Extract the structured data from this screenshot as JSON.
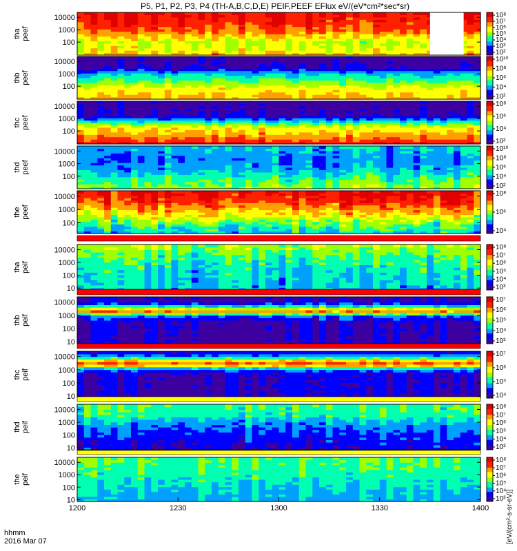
{
  "chart_data": {
    "type": "heatmap",
    "title": "P5, P1, P2, P3, P4 (TH-A,B,C,D,E) PEIF,PEEF EFlux eV/(eV*cm²*sec*sr)",
    "x_axis": {
      "label": "hhmm",
      "date": "2016 Mar 07",
      "ticks": [
        "1200",
        "1230",
        "1300",
        "1330",
        "1400"
      ],
      "range": [
        "1200",
        "1400"
      ]
    },
    "colorbar_units": "[eV/(cm²-s-sr-eV)]",
    "colormap": [
      "#3c00a0",
      "#0000ff",
      "#00a0ff",
      "#00ffb0",
      "#a0ff00",
      "#ffff00",
      "#ffa000",
      "#ff2000",
      "#e00000"
    ],
    "panels": [
      {
        "label1": "tha",
        "label2": "peef",
        "yticks": [
          "10000",
          "1000",
          "100"
        ],
        "ylog_range": [
          0.95,
          4.4
        ],
        "cbar_ticks": [
          "10⁸",
          "10⁷",
          "10⁶",
          "10⁵",
          "10⁴",
          "10³",
          "10²"
        ],
        "cbar_log_range": [
          1.8,
          8.3
        ],
        "profile": [
          [
            0.95,
            0.7
          ],
          [
            1.4,
            0.6
          ],
          [
            2.0,
            0.55
          ],
          [
            3.0,
            0.8
          ],
          [
            4.4,
            0.92
          ]
        ],
        "variation": 0.08,
        "gaps": [
          [
            1345,
            1355
          ]
        ]
      },
      {
        "label1": "thb",
        "label2": "peef",
        "yticks": [
          "10000",
          "1000",
          "100"
        ],
        "ylog_range": [
          0.95,
          4.4
        ],
        "cbar_ticks": [
          "10¹⁰",
          "10⁸",
          "10⁶",
          "10⁴",
          "10²"
        ],
        "cbar_log_range": [
          1.5,
          10.3
        ],
        "profile": [
          [
            0.95,
            0.7
          ],
          [
            1.8,
            0.6
          ],
          [
            2.4,
            0.45
          ],
          [
            3.0,
            0.32
          ],
          [
            3.5,
            0.1
          ],
          [
            4.4,
            0.05
          ]
        ],
        "variation": 0.05,
        "gaps": []
      },
      {
        "label1": "thc",
        "label2": "peef",
        "yticks": [
          "10000",
          "1000",
          "100"
        ],
        "ylog_range": [
          0.95,
          4.4
        ],
        "cbar_ticks": [
          "10⁸",
          "10⁶",
          "10⁴",
          "10²"
        ],
        "cbar_log_range": [
          1.5,
          8.5
        ],
        "profile": [
          [
            0.95,
            0.9
          ],
          [
            1.5,
            0.75
          ],
          [
            2.3,
            0.6
          ],
          [
            2.8,
            0.35
          ],
          [
            3.2,
            0.1
          ],
          [
            4.4,
            0.05
          ]
        ],
        "variation": 0.06,
        "gaps": []
      },
      {
        "label1": "thd",
        "label2": "peef",
        "yticks": [
          "10000",
          "1000",
          "100"
        ],
        "ylog_range": [
          1.0,
          4.4
        ],
        "cbar_ticks": [
          "10¹⁰",
          "10⁸",
          "10⁶",
          "10⁴",
          "10²"
        ],
        "cbar_log_range": [
          1.5,
          10.3
        ],
        "profile": [
          [
            1.0,
            0.5
          ],
          [
            1.8,
            0.42
          ],
          [
            2.5,
            0.3
          ],
          [
            3.3,
            0.25
          ],
          [
            4.4,
            0.32
          ]
        ],
        "variation": 0.08,
        "gaps": []
      },
      {
        "label1": "the",
        "label2": "peef",
        "yticks": [
          "10000",
          "1000",
          "100"
        ],
        "ylog_range": [
          1.2,
          4.4
        ],
        "cbar_ticks": [
          "10⁸",
          "10⁶",
          "10⁴"
        ],
        "cbar_log_range": [
          3.5,
          8.5
        ],
        "profile": [
          [
            1.2,
            0.3
          ],
          [
            2.0,
            0.45
          ],
          [
            3.0,
            0.7
          ],
          [
            3.8,
            0.85
          ],
          [
            4.4,
            0.9
          ]
        ],
        "variation": 0.12,
        "gaps": []
      },
      {
        "label1": "tha",
        "label2": "peif",
        "yticks": [
          "10000",
          "1000",
          "100",
          "10"
        ],
        "ylog_range": [
          0.85,
          4.4
        ],
        "cbar_ticks": [
          "10⁸",
          "10⁷",
          "10⁶",
          "10⁵",
          "10⁴",
          "10³"
        ],
        "cbar_log_range": [
          2.8,
          8.3
        ],
        "profile": [
          [
            0.85,
            0.3
          ],
          [
            1.5,
            0.32
          ],
          [
            2.5,
            0.35
          ],
          [
            3.5,
            0.42
          ],
          [
            4.2,
            0.5
          ],
          [
            4.4,
            0.5
          ]
        ],
        "variation": 0.09,
        "gaps": []
      },
      {
        "label1": "thb",
        "label2": "peif",
        "yticks": [
          "10000",
          "1000",
          "100",
          "10"
        ],
        "ylog_range": [
          0.85,
          4.4
        ],
        "cbar_ticks": [
          "10⁷",
          "10⁶",
          "10⁵",
          "10⁴",
          "10³"
        ],
        "cbar_log_range": [
          2.8,
          7.5
        ],
        "profile": [
          [
            0.85,
            0.08
          ],
          [
            2.5,
            0.1
          ],
          [
            3.0,
            0.25
          ],
          [
            3.3,
            0.75
          ],
          [
            3.5,
            0.55
          ],
          [
            4.0,
            0.1
          ],
          [
            4.4,
            0.08
          ]
        ],
        "variation": 0.06,
        "gaps": []
      },
      {
        "label1": "thc",
        "label2": "peif",
        "yticks": [
          "10000",
          "1000",
          "100",
          "10"
        ],
        "ylog_range": [
          0.85,
          4.4
        ],
        "cbar_ticks": [
          "10⁷",
          "10⁶",
          "10⁵",
          "10⁴"
        ],
        "cbar_log_range": [
          3.4,
          7.5
        ],
        "profile": [
          [
            0.85,
            0.1
          ],
          [
            2.8,
            0.12
          ],
          [
            3.2,
            0.4
          ],
          [
            3.4,
            0.85
          ],
          [
            3.7,
            0.65
          ],
          [
            4.0,
            0.3
          ],
          [
            4.4,
            0.1
          ]
        ],
        "variation": 0.05,
        "gaps": []
      },
      {
        "label1": "thd",
        "label2": "peif",
        "yticks": [
          "10000",
          "1000",
          "100",
          "10"
        ],
        "ylog_range": [
          0.85,
          4.4
        ],
        "cbar_ticks": [
          "10⁸",
          "10⁷",
          "10⁶",
          "10⁵",
          "10⁴",
          "10³"
        ],
        "cbar_log_range": [
          2.8,
          8.3
        ],
        "profile": [
          [
            0.85,
            0.12
          ],
          [
            2.0,
            0.18
          ],
          [
            2.8,
            0.25
          ],
          [
            3.5,
            0.38
          ],
          [
            4.4,
            0.42
          ]
        ],
        "variation": 0.07,
        "gaps": []
      },
      {
        "label1": "the",
        "label2": "peif",
        "yticks": [
          "10000",
          "1000",
          "100",
          "10"
        ],
        "ylog_range": [
          0.85,
          4.4
        ],
        "cbar_ticks": [
          "10⁸",
          "10⁷",
          "10⁶",
          "10⁵",
          "10⁴",
          "10³"
        ],
        "cbar_log_range": [
          2.8,
          8.3
        ],
        "profile": [
          [
            0.85,
            0.3
          ],
          [
            2.0,
            0.35
          ],
          [
            3.0,
            0.4
          ],
          [
            4.0,
            0.45
          ],
          [
            4.4,
            0.45
          ]
        ],
        "variation": 0.06,
        "gaps": []
      }
    ]
  }
}
